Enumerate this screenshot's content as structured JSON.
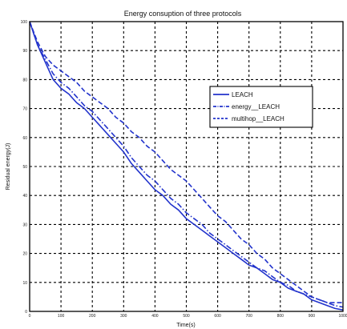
{
  "chart_data": {
    "type": "line",
    "title": "Energy consuption of three protocols",
    "xlabel": "Time(s)",
    "ylabel": "Residual energy(J)",
    "xlim": [
      0,
      1000
    ],
    "ylim": [
      0,
      100
    ],
    "xticks": [
      0,
      100,
      200,
      300,
      400,
      500,
      600,
      700,
      800,
      900,
      1000
    ],
    "yticks": [
      0,
      10,
      20,
      30,
      40,
      50,
      60,
      70,
      80,
      90,
      100
    ],
    "grid": true,
    "legend_position": "top-right",
    "series": [
      {
        "name": "LEACH",
        "style": "solid",
        "color": "#2233cc",
        "x": [
          0,
          25,
          50,
          75,
          100,
          125,
          150,
          175,
          200,
          225,
          250,
          275,
          300,
          325,
          350,
          375,
          400,
          425,
          450,
          475,
          500,
          525,
          550,
          575,
          600,
          625,
          650,
          675,
          700,
          725,
          750,
          775,
          800,
          825,
          850,
          875,
          900,
          925,
          950,
          975,
          1000
        ],
        "y": [
          100,
          92,
          86,
          80,
          77,
          75,
          72,
          70,
          67,
          64,
          61,
          58,
          55,
          51,
          48,
          45,
          42,
          40,
          37,
          35,
          32,
          30,
          28,
          26,
          24,
          22,
          20,
          18,
          16,
          15,
          13,
          11,
          10,
          8,
          7,
          6,
          4,
          3,
          2,
          1,
          0.5
        ]
      },
      {
        "name": "energy__LEACH",
        "style": "dashdot",
        "color": "#2233cc",
        "x": [
          0,
          25,
          50,
          75,
          100,
          125,
          150,
          175,
          200,
          225,
          250,
          275,
          300,
          325,
          350,
          375,
          400,
          425,
          450,
          475,
          500,
          525,
          550,
          575,
          600,
          625,
          650,
          675,
          700,
          725,
          750,
          775,
          800,
          825,
          850,
          875,
          900,
          925,
          950,
          975,
          1000
        ],
        "y": [
          100,
          92,
          87,
          82,
          79,
          77,
          74,
          71,
          69,
          66,
          63,
          60,
          57,
          53,
          50,
          47,
          45,
          42,
          39,
          37,
          34,
          32,
          30,
          27,
          25,
          23,
          21,
          19,
          17,
          15,
          14,
          12,
          10,
          9,
          7,
          6,
          5,
          4,
          3,
          2,
          1.5
        ]
      },
      {
        "name": "multihop__LEACH",
        "style": "dashed",
        "color": "#2233cc",
        "x": [
          0,
          25,
          50,
          75,
          100,
          125,
          150,
          175,
          200,
          225,
          250,
          275,
          300,
          325,
          350,
          375,
          400,
          425,
          450,
          475,
          500,
          525,
          550,
          575,
          600,
          625,
          650,
          675,
          700,
          725,
          750,
          775,
          800,
          825,
          850,
          875,
          900,
          925,
          950,
          975,
          1000
        ],
        "y": [
          100,
          93,
          88,
          85,
          83,
          81,
          79,
          76,
          74,
          72,
          70,
          67,
          65,
          62,
          60,
          57,
          55,
          52,
          49,
          47,
          45,
          42,
          39,
          36,
          33,
          31,
          28,
          25,
          23,
          20,
          18,
          15,
          13,
          11,
          9,
          7,
          5,
          4,
          3,
          3,
          3
        ]
      }
    ]
  }
}
